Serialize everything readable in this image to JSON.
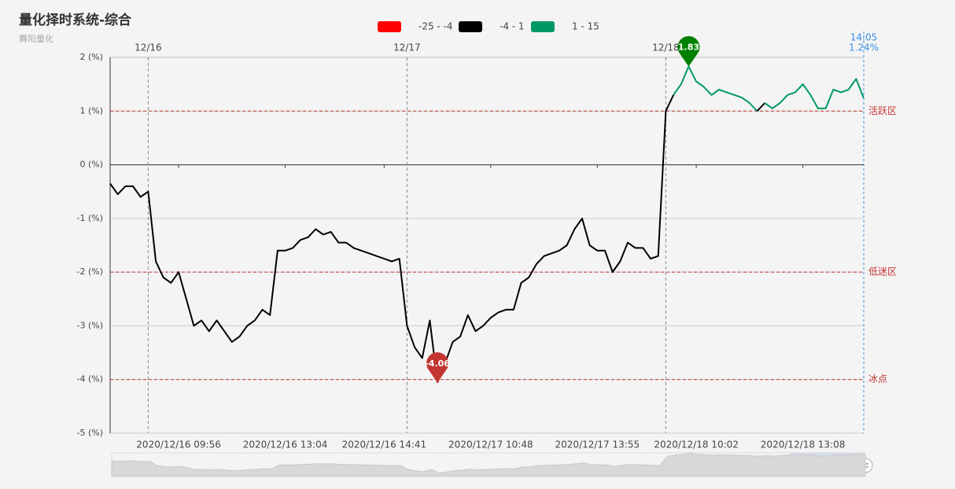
{
  "chart_data": {
    "type": "line",
    "title": "量化择时系统-综合",
    "subtitle": "舞阳量化",
    "pieces": [
      {
        "min": -25,
        "max": -4,
        "label": "-25 - -4",
        "color": "#ff0000"
      },
      {
        "min": -4,
        "max": 1,
        "label": "-4 - 1",
        "color": "#000000"
      },
      {
        "min": 1,
        "max": 15,
        "label": "1 - 15",
        "color": "#009966"
      }
    ],
    "categories": [
      null,
      null,
      null,
      null,
      null,
      null,
      null,
      null,
      null,
      "2020/12/16 09:56",
      null,
      null,
      null,
      null,
      null,
      null,
      null,
      null,
      null,
      null,
      null,
      null,
      null,
      "2020/12/16 13:04",
      null,
      null,
      null,
      null,
      null,
      null,
      null,
      null,
      null,
      null,
      null,
      null,
      "2020/12/16 14:41",
      null,
      null,
      null,
      null,
      null,
      null,
      null,
      null,
      null,
      null,
      null,
      null,
      null,
      "2020/12/17 10:48",
      null,
      null,
      null,
      null,
      null,
      null,
      null,
      null,
      null,
      null,
      null,
      null,
      null,
      "2020/12/17 13:55",
      null,
      null,
      null,
      null,
      null,
      null,
      null,
      null,
      null,
      null,
      null,
      null,
      "2020/12/18 10:02",
      null,
      null,
      null,
      null,
      null,
      null,
      null,
      null,
      null,
      null,
      null,
      null,
      null,
      "2020/12/18 13:08",
      null,
      null,
      null,
      null,
      null,
      null,
      null,
      null
    ],
    "top_categories": [
      null,
      null,
      null,
      null,
      null,
      "12/16",
      null,
      null,
      null,
      null,
      null,
      null,
      null,
      null,
      null,
      null,
      null,
      null,
      null,
      null,
      null,
      null,
      null,
      null,
      null,
      null,
      null,
      null,
      null,
      null,
      null,
      null,
      null,
      null,
      null,
      null,
      null,
      null,
      null,
      "12/17",
      null,
      null,
      null,
      null,
      null,
      null,
      null,
      null,
      null,
      null,
      null,
      null,
      null,
      null,
      null,
      null,
      null,
      null,
      null,
      null,
      null,
      null,
      null,
      null,
      null,
      null,
      null,
      null,
      null,
      null,
      null,
      null,
      null,
      "12/18",
      null,
      null,
      null,
      null,
      null,
      null,
      null,
      null,
      null,
      null,
      null,
      null,
      null,
      null,
      null,
      null,
      null,
      null,
      null,
      null,
      null,
      null,
      null,
      null,
      null,
      null
    ],
    "values": [
      -0.35,
      -0.55,
      -0.4,
      -0.4,
      -0.6,
      -0.5,
      -1.8,
      -2.1,
      -2.2,
      -2.0,
      -2.5,
      -3.0,
      -2.9,
      -3.1,
      -2.9,
      -3.1,
      -3.3,
      -3.2,
      -3.0,
      -2.9,
      -2.7,
      -2.8,
      -1.6,
      -1.6,
      -1.55,
      -1.4,
      -1.35,
      -1.2,
      -1.3,
      -1.25,
      -1.45,
      -1.45,
      -1.55,
      -1.6,
      -1.65,
      -1.7,
      -1.75,
      -1.8,
      -1.75,
      -3.0,
      -3.4,
      -3.6,
      -2.9,
      -4.06,
      -3.7,
      -3.3,
      -3.2,
      -2.8,
      -3.1,
      -3.0,
      -2.85,
      -2.75,
      -2.7,
      -2.7,
      -2.2,
      -2.1,
      -1.85,
      -1.7,
      -1.65,
      -1.6,
      -1.5,
      -1.2,
      -1.0,
      -1.5,
      -1.6,
      -1.6,
      -2.0,
      -1.8,
      -1.45,
      -1.55,
      -1.55,
      -1.75,
      -1.7,
      1.0,
      1.3,
      1.5,
      1.83,
      1.55,
      1.45,
      1.3,
      1.4,
      1.35,
      1.3,
      1.25,
      1.15,
      1.0,
      1.15,
      1.05,
      1.15,
      1.3,
      1.35,
      1.5,
      1.3,
      1.05,
      1.05,
      1.4,
      1.35,
      1.4,
      1.6,
      1.24
    ],
    "max_point": 1.83,
    "min_point": -4.06,
    "pointer": {
      "time": "14:05",
      "label": "1.24%"
    },
    "mark_lines": [
      {
        "value": 1,
        "label": "活跃区"
      },
      {
        "value": -2,
        "label": "低迷区"
      },
      {
        "value": -4,
        "label": "冰点"
      }
    ],
    "ylim": [
      -5,
      2
    ],
    "yticks": [
      {
        "value": -5,
        "label": "-5 (%)"
      },
      {
        "value": -4,
        "label": "-4 (%)"
      },
      {
        "value": -3,
        "label": "-3 (%)"
      },
      {
        "value": -2,
        "label": "-2 (%)"
      },
      {
        "value": -1,
        "label": "-1 (%)"
      },
      {
        "value": 0,
        "label": "0 (%)"
      },
      {
        "value": 1,
        "label": "1 (%)"
      },
      {
        "value": 2,
        "label": "2 (%)"
      }
    ],
    "grid": true
  }
}
